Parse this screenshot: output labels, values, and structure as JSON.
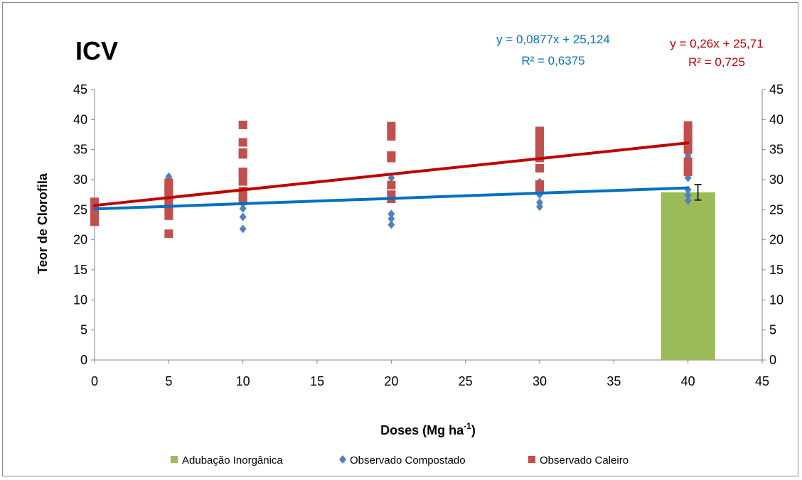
{
  "chart_data": {
    "type": "scatter",
    "title": "ICV",
    "xlabel": "Doses (Mg ha",
    "xlabel_sup": "-1",
    "xlabel_end": ")",
    "ylabel": "Teor de Clorofila",
    "xlim": [
      0,
      45
    ],
    "ylim": [
      0,
      45
    ],
    "x_ticks": [
      "0",
      "5",
      "10",
      "15",
      "20",
      "25",
      "30",
      "35",
      "40",
      "45"
    ],
    "y_ticks": [
      "0",
      "5",
      "10",
      "15",
      "20",
      "25",
      "30",
      "35",
      "40",
      "45"
    ],
    "secondary_y_axis": true,
    "grid": false,
    "legend_position": "bottom",
    "bar": {
      "name": "Adubação Inorgânica",
      "x": 40,
      "value": 27.9,
      "error": 1.3,
      "color": "#9bbb59"
    },
    "series": [
      {
        "name": "Observado Compostado",
        "marker": "diamond",
        "color": "#4f81bd",
        "points": [
          [
            0,
            24.5
          ],
          [
            0,
            25.0
          ],
          [
            0,
            25.5
          ],
          [
            0,
            26.0
          ],
          [
            5,
            24.5
          ],
          [
            5,
            25.2
          ],
          [
            5,
            26.0
          ],
          [
            5,
            27.0
          ],
          [
            5,
            28.0
          ],
          [
            5,
            29.0
          ],
          [
            5,
            30.5
          ],
          [
            10,
            21.8
          ],
          [
            10,
            23.8
          ],
          [
            10,
            25.2
          ],
          [
            10,
            26.0
          ],
          [
            10,
            27.0
          ],
          [
            20,
            22.5
          ],
          [
            20,
            23.5
          ],
          [
            20,
            24.3
          ],
          [
            20,
            26.8
          ],
          [
            20,
            30.3
          ],
          [
            30,
            25.5
          ],
          [
            30,
            26.2
          ],
          [
            30,
            27.5
          ],
          [
            30,
            28.5
          ],
          [
            30,
            29.6
          ],
          [
            40,
            26.5
          ],
          [
            40,
            27.4
          ],
          [
            40,
            28.3
          ],
          [
            40,
            30.3
          ],
          [
            40,
            32.0
          ],
          [
            40,
            34.0
          ]
        ],
        "trendline": {
          "slope": 0.0877,
          "intercept": 25.124,
          "equation": "y = 0,0877x + 25,124",
          "r2": "R² = 0,6375"
        }
      },
      {
        "name": "Observado Caleiro",
        "marker": "square",
        "color": "#c0504d",
        "points": [
          [
            0,
            23.0
          ],
          [
            0,
            23.8
          ],
          [
            0,
            24.5
          ],
          [
            0,
            25.3
          ],
          [
            0,
            26.3
          ],
          [
            5,
            21.0
          ],
          [
            5,
            24.0
          ],
          [
            5,
            25.2
          ],
          [
            5,
            26.4
          ],
          [
            5,
            27.3
          ],
          [
            5,
            28.0
          ],
          [
            5,
            28.8
          ],
          [
            5,
            29.5
          ],
          [
            10,
            26.5
          ],
          [
            10,
            27.5
          ],
          [
            10,
            28.1
          ],
          [
            10,
            29.7
          ],
          [
            10,
            30.8
          ],
          [
            10,
            31.3
          ],
          [
            10,
            34.2
          ],
          [
            10,
            34.5
          ],
          [
            10,
            36.2
          ],
          [
            10,
            39.1
          ],
          [
            20,
            26.8
          ],
          [
            20,
            27.5
          ],
          [
            20,
            29.1
          ],
          [
            20,
            33.6
          ],
          [
            20,
            34.0
          ],
          [
            20,
            37.2
          ],
          [
            20,
            38.5
          ],
          [
            20,
            38.9
          ],
          [
            30,
            28.6
          ],
          [
            30,
            29.2
          ],
          [
            30,
            31.9
          ],
          [
            30,
            33.6
          ],
          [
            30,
            34.2
          ],
          [
            30,
            35.1
          ],
          [
            30,
            36.0
          ],
          [
            30,
            37.2
          ],
          [
            30,
            38.1
          ],
          [
            40,
            31.3
          ],
          [
            40,
            32.0
          ],
          [
            40,
            33.0
          ],
          [
            40,
            35.0
          ],
          [
            40,
            35.8
          ],
          [
            40,
            36.6
          ],
          [
            40,
            37.3
          ],
          [
            40,
            38.2
          ],
          [
            40,
            39.0
          ]
        ],
        "trendline": {
          "slope": 0.26,
          "intercept": 25.71,
          "equation": "y = 0,26x + 25,71",
          "r2": "R² = 0,725"
        }
      }
    ]
  }
}
